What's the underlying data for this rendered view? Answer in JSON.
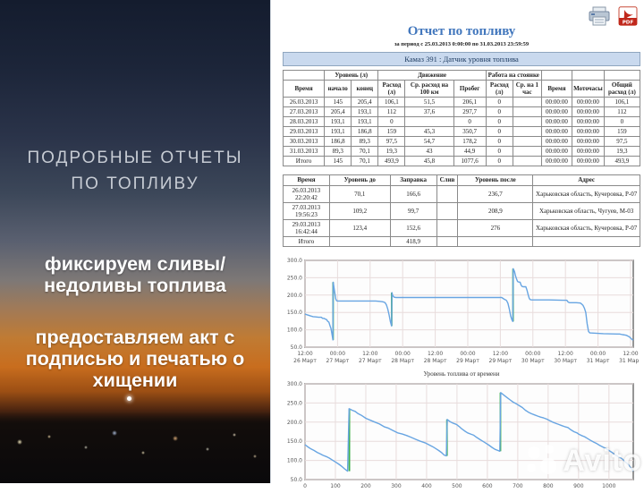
{
  "left_panel": {
    "heading": "ПОДРОБНЫЕ ОТЧЕТЫ\nПО ТОПЛИВУ",
    "point1": "фиксируем сливы/\nнедоливы топлива",
    "point2": "предоставляем акт с\nподписью и печатью о\nхищении"
  },
  "report": {
    "title": "Отчет по топливу",
    "subtitle": "за период с 25.03.2013 0:00:00 по 31.03.2013 23:59:59",
    "vehicle_header": "Камаз 391 : Датчик уровня топлива",
    "daily_table": {
      "group_level": "Уровень (л)",
      "group_movement": "Движение",
      "group_idle": "Работа на стоянке",
      "columns": [
        "Время",
        "начало",
        "конец",
        "Расход (л)",
        "Ср. расход на 100 км",
        "Пробег",
        "Расход (л)",
        "Ср. на 1 час",
        "Время",
        "Моточасы",
        "Общий расход (л)"
      ],
      "rows": [
        [
          "26.03.2013",
          "145",
          "205,4",
          "106,1",
          "51,5",
          "206,1",
          "0",
          "",
          "00:00:00",
          "00:00:00",
          "106,1"
        ],
        [
          "27.03.2013",
          "205,4",
          "193,1",
          "112",
          "37,6",
          "297,7",
          "0",
          "",
          "00:00:00",
          "00:00:00",
          "112"
        ],
        [
          "28.03.2013",
          "193,1",
          "193,1",
          "0",
          "",
          "0",
          "0",
          "",
          "00:00:00",
          "00:00:00",
          "0"
        ],
        [
          "29.03.2013",
          "193,1",
          "186,8",
          "159",
          "45,3",
          "350,7",
          "0",
          "",
          "00:00:00",
          "00:00:00",
          "159"
        ],
        [
          "30.03.2013",
          "186,8",
          "89,3",
          "97,5",
          "54,7",
          "178,2",
          "0",
          "",
          "00:00:00",
          "00:00:00",
          "97,5"
        ],
        [
          "31.03.2013",
          "89,3",
          "70,1",
          "19,3",
          "43",
          "44,9",
          "0",
          "",
          "00:00:00",
          "00:00:00",
          "19,3"
        ],
        [
          "Итого",
          "145",
          "70,1",
          "493,9",
          "45,8",
          "1077,6",
          "0",
          "",
          "00:00:00",
          "00:00:00",
          "493,9"
        ]
      ]
    },
    "refuel_table": {
      "columns": [
        "Время",
        "Уровень до",
        "Заправка",
        "Слив",
        "Уровень после",
        "Адрес"
      ],
      "rows": [
        [
          "26.03.2013 22:20:42",
          "70,1",
          "166,6",
          "",
          "236,7",
          "Харьковская область, Кучеровка, Р-07"
        ],
        [
          "27.03.2013 19:56:23",
          "109,2",
          "99,7",
          "",
          "208,9",
          "Харьковская область, Чугуев, М-03"
        ],
        [
          "29.03.2013 16:42:44",
          "123,4",
          "152,6",
          "",
          "276",
          "Харьковская область, Кучеровка, Р-07"
        ],
        [
          "Итого",
          "",
          "418,9",
          "",
          "",
          ""
        ]
      ]
    },
    "pdf_icon_label": "PDF"
  },
  "chart_data": [
    {
      "type": "line",
      "title": "Уровень топлива от времени",
      "xlim": [
        0,
        121
      ],
      "ylim": [
        50,
        300
      ],
      "line_color": "#68a5e2",
      "refuel_color": "#3eb14c",
      "yticks": [
        {
          "v": 50,
          "label": "50.0"
        },
        {
          "v": 100,
          "label": "100.0"
        },
        {
          "v": 150,
          "label": "150.0"
        },
        {
          "v": 200,
          "label": "200.0"
        },
        {
          "v": 250,
          "label": "250.0"
        },
        {
          "v": 300,
          "label": "300.0"
        }
      ],
      "xticks": [
        {
          "v": 0,
          "labels": [
            "12:00",
            "26 Март"
          ]
        },
        {
          "v": 12,
          "labels": [
            "00:00",
            "27 Март"
          ]
        },
        {
          "v": 24,
          "labels": [
            "12:00",
            "27 Март"
          ]
        },
        {
          "v": 36,
          "labels": [
            "00:00",
            "28 Март"
          ]
        },
        {
          "v": 48,
          "labels": [
            "12:00",
            "28 Март"
          ]
        },
        {
          "v": 60,
          "labels": [
            "00:00",
            "29 Март"
          ]
        },
        {
          "v": 72,
          "labels": [
            "12:00",
            "29 Март"
          ]
        },
        {
          "v": 84,
          "labels": [
            "00:00",
            "30 Март"
          ]
        },
        {
          "v": 96,
          "labels": [
            "12:00",
            "30 Март"
          ]
        },
        {
          "v": 108,
          "labels": [
            "00:00",
            "31 Март"
          ]
        },
        {
          "v": 120,
          "labels": [
            "12:00",
            "31 Март"
          ]
        }
      ],
      "points": [
        [
          0,
          145
        ],
        [
          2,
          140
        ],
        [
          3,
          138
        ],
        [
          4,
          137
        ],
        [
          5,
          136
        ],
        [
          6,
          136
        ],
        [
          6.5,
          133
        ],
        [
          7,
          133
        ],
        [
          7.5,
          131
        ],
        [
          8,
          129
        ],
        [
          8.3,
          125
        ],
        [
          8.8,
          122
        ],
        [
          9.2,
          112
        ],
        [
          9.6,
          103
        ],
        [
          10,
          85
        ],
        [
          10.3,
          71
        ],
        [
          10.4,
          237
        ],
        [
          10.8,
          215
        ],
        [
          11.3,
          190
        ],
        [
          11.6,
          184
        ],
        [
          12,
          183
        ],
        [
          20,
          183
        ],
        [
          26,
          183
        ],
        [
          27.5,
          182
        ],
        [
          28.5,
          181
        ],
        [
          29,
          180
        ],
        [
          29.5,
          178
        ],
        [
          30,
          172
        ],
        [
          30.5,
          160
        ],
        [
          31,
          143
        ],
        [
          31.5,
          123
        ],
        [
          31.9,
          111
        ],
        [
          32.05,
          207
        ],
        [
          32.3,
          199
        ],
        [
          32.8,
          194
        ],
        [
          33.5,
          193
        ],
        [
          45,
          193
        ],
        [
          60,
          193
        ],
        [
          70,
          193
        ],
        [
          72.5,
          193
        ],
        [
          73.5,
          188
        ],
        [
          74,
          186
        ],
        [
          74.3,
          184
        ],
        [
          74.8,
          176
        ],
        [
          75.3,
          160
        ],
        [
          75.8,
          140
        ],
        [
          76.3,
          128
        ],
        [
          76.6,
          124
        ],
        [
          76.75,
          276
        ],
        [
          77.2,
          268
        ],
        [
          77.6,
          255
        ],
        [
          78,
          246
        ],
        [
          78.3,
          240
        ],
        [
          78.6,
          238
        ],
        [
          79.3,
          237
        ],
        [
          79.6,
          230
        ],
        [
          80,
          225
        ],
        [
          80.4,
          224
        ],
        [
          81.4,
          224
        ],
        [
          81.8,
          215
        ],
        [
          82.3,
          200
        ],
        [
          82.7,
          190
        ],
        [
          83,
          187
        ],
        [
          83.5,
          186
        ],
        [
          90,
          186
        ],
        [
          95,
          185
        ],
        [
          96.5,
          185
        ],
        [
          97,
          180
        ],
        [
          97.5,
          178
        ],
        [
          100,
          178
        ],
        [
          101.5,
          177
        ],
        [
          102,
          174
        ],
        [
          102.5,
          170
        ],
        [
          103,
          162
        ],
        [
          103.5,
          150
        ],
        [
          104,
          118
        ],
        [
          104.5,
          95
        ],
        [
          105,
          91
        ],
        [
          110,
          89
        ],
        [
          115,
          88
        ],
        [
          116,
          88
        ],
        [
          117,
          86
        ],
        [
          118,
          85
        ],
        [
          118.5,
          84
        ],
        [
          119,
          82
        ],
        [
          119.5,
          80
        ],
        [
          120,
          76
        ],
        [
          120.6,
          72
        ],
        [
          121,
          70
        ]
      ],
      "refuels": [
        {
          "x": 10.35,
          "y0": 71,
          "y1": 237
        },
        {
          "x": 31.95,
          "y0": 111,
          "y1": 207
        },
        {
          "x": 76.7,
          "y0": 124,
          "y1": 276
        }
      ]
    },
    {
      "type": "line",
      "title": "",
      "xlim": [
        0,
        1080
      ],
      "ylim": [
        50,
        300
      ],
      "line_color": "#68a5e2",
      "refuel_color": "#3eb14c",
      "yticks": [
        {
          "v": 50,
          "label": "50.0"
        },
        {
          "v": 100,
          "label": "100.0"
        },
        {
          "v": 150,
          "label": "150.0"
        },
        {
          "v": 200,
          "label": "200.0"
        },
        {
          "v": 250,
          "label": "250.0"
        },
        {
          "v": 300,
          "label": "300.0"
        }
      ],
      "xticks": [
        {
          "v": 0,
          "labels": [
            "0"
          ]
        },
        {
          "v": 100,
          "labels": [
            "100"
          ]
        },
        {
          "v": 200,
          "labels": [
            "200"
          ]
        },
        {
          "v": 300,
          "labels": [
            "300"
          ]
        },
        {
          "v": 400,
          "labels": [
            "400"
          ]
        },
        {
          "v": 500,
          "labels": [
            "500"
          ]
        },
        {
          "v": 600,
          "labels": [
            "600"
          ]
        },
        {
          "v": 700,
          "labels": [
            "700"
          ]
        },
        {
          "v": 800,
          "labels": [
            "800"
          ]
        },
        {
          "v": 900,
          "labels": [
            "900"
          ]
        },
        {
          "v": 1000,
          "labels": [
            "1000"
          ]
        }
      ],
      "points": [
        [
          0,
          141
        ],
        [
          10,
          135
        ],
        [
          20,
          130
        ],
        [
          30,
          126
        ],
        [
          40,
          121
        ],
        [
          50,
          117
        ],
        [
          60,
          113
        ],
        [
          70,
          110
        ],
        [
          80,
          106
        ],
        [
          90,
          101
        ],
        [
          100,
          96
        ],
        [
          110,
          91
        ],
        [
          120,
          85
        ],
        [
          130,
          78
        ],
        [
          140,
          72
        ],
        [
          145,
          235
        ],
        [
          155,
          231
        ],
        [
          165,
          228
        ],
        [
          175,
          222
        ],
        [
          185,
          218
        ],
        [
          200,
          210
        ],
        [
          215,
          205
        ],
        [
          230,
          200
        ],
        [
          245,
          195
        ],
        [
          260,
          188
        ],
        [
          275,
          184
        ],
        [
          290,
          178
        ],
        [
          305,
          172
        ],
        [
          320,
          169
        ],
        [
          335,
          165
        ],
        [
          350,
          160
        ],
        [
          365,
          155
        ],
        [
          380,
          150
        ],
        [
          395,
          146
        ],
        [
          410,
          140
        ],
        [
          420,
          136
        ],
        [
          430,
          131
        ],
        [
          440,
          126
        ],
        [
          450,
          120
        ],
        [
          458,
          114
        ],
        [
          465,
          112
        ],
        [
          468,
          207
        ],
        [
          478,
          201
        ],
        [
          488,
          197
        ],
        [
          495,
          195
        ],
        [
          500,
          193
        ],
        [
          508,
          188
        ],
        [
          515,
          183
        ],
        [
          525,
          177
        ],
        [
          535,
          172
        ],
        [
          545,
          169
        ],
        [
          555,
          166
        ],
        [
          565,
          160
        ],
        [
          575,
          155
        ],
        [
          585,
          150
        ],
        [
          595,
          145
        ],
        [
          605,
          140
        ],
        [
          615,
          134
        ],
        [
          625,
          129
        ],
        [
          635,
          126
        ],
        [
          641,
          124
        ],
        [
          644,
          277
        ],
        [
          655,
          270
        ],
        [
          665,
          264
        ],
        [
          675,
          258
        ],
        [
          685,
          252
        ],
        [
          695,
          248
        ],
        [
          705,
          243
        ],
        [
          715,
          238
        ],
        [
          725,
          231
        ],
        [
          735,
          226
        ],
        [
          745,
          222
        ],
        [
          755,
          219
        ],
        [
          765,
          216
        ],
        [
          775,
          213
        ],
        [
          785,
          211
        ],
        [
          795,
          208
        ],
        [
          805,
          204
        ],
        [
          815,
          200
        ],
        [
          825,
          197
        ],
        [
          835,
          194
        ],
        [
          845,
          191
        ],
        [
          855,
          188
        ],
        [
          865,
          186
        ],
        [
          875,
          180
        ],
        [
          885,
          175
        ],
        [
          895,
          172
        ],
        [
          900,
          169
        ],
        [
          910,
          165
        ],
        [
          920,
          162
        ],
        [
          930,
          157
        ],
        [
          940,
          152
        ],
        [
          950,
          148
        ],
        [
          960,
          144
        ],
        [
          970,
          139
        ],
        [
          980,
          135
        ],
        [
          990,
          131
        ],
        [
          1000,
          126
        ],
        [
          1010,
          121
        ],
        [
          1020,
          115
        ],
        [
          1030,
          110
        ],
        [
          1040,
          106
        ],
        [
          1045,
          103
        ],
        [
          1050,
          99
        ],
        [
          1055,
          95
        ],
        [
          1060,
          92
        ],
        [
          1065,
          88
        ],
        [
          1070,
          82
        ],
        [
          1075,
          78
        ],
        [
          1080,
          72
        ]
      ],
      "refuels": [
        {
          "x": 146,
          "y0": 72,
          "y1": 235
        },
        {
          "x": 467,
          "y0": 112,
          "y1": 207
        },
        {
          "x": 643,
          "y0": 124,
          "y1": 277
        }
      ]
    }
  ],
  "watermark": {
    "text": "Avito"
  }
}
